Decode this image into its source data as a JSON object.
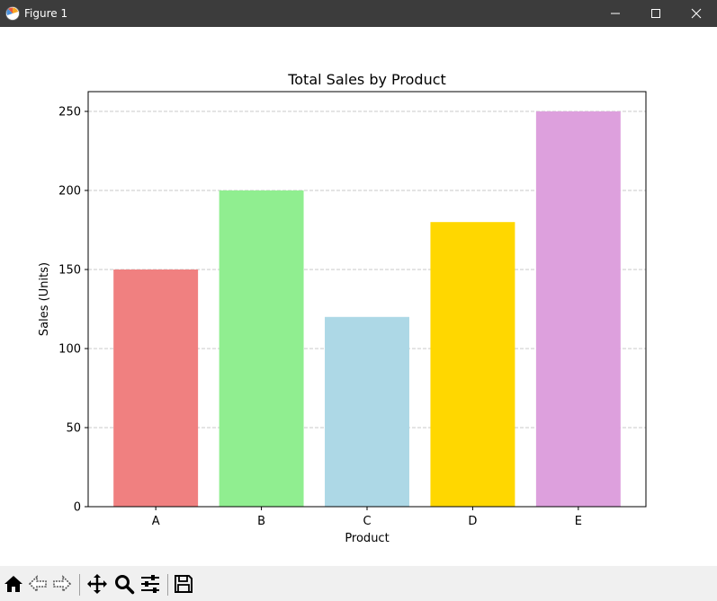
{
  "window": {
    "title": "Figure 1"
  },
  "toolbar": {
    "tools": [
      "home-icon",
      "back-icon",
      "forward-icon",
      "pan-icon",
      "zoom-icon",
      "configure-subplots-icon",
      "save-icon"
    ]
  },
  "chart_data": {
    "type": "bar",
    "title": "Total Sales by Product",
    "xlabel": "Product",
    "ylabel": "Sales (Units)",
    "categories": [
      "A",
      "B",
      "C",
      "D",
      "E"
    ],
    "values": [
      150,
      200,
      120,
      180,
      250
    ],
    "colors": [
      "#f08080",
      "#90ee90",
      "#add8e6",
      "#ffd700",
      "#dda0dd"
    ],
    "ylim": [
      0,
      262.5
    ],
    "yticks": [
      0,
      50,
      100,
      150,
      200,
      250
    ],
    "grid": "y-dashed"
  }
}
